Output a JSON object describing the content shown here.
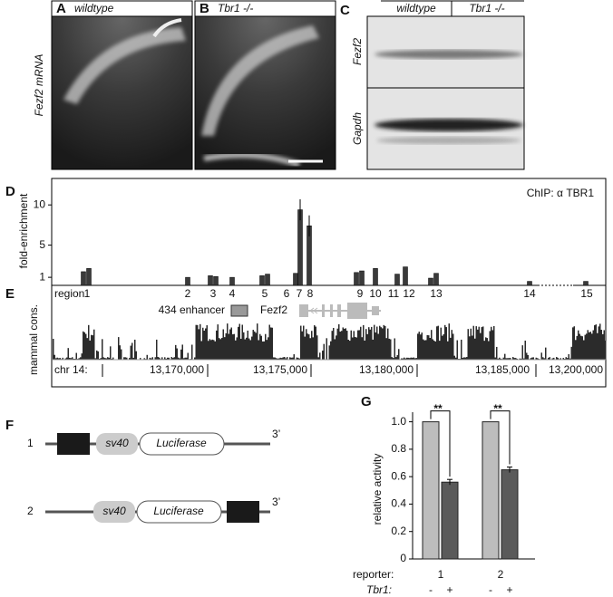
{
  "panel_labels": [
    "A",
    "B",
    "C",
    "D",
    "E",
    "F",
    "G"
  ],
  "panel_a": {
    "title": "wildtype",
    "ylabel": "Fezf2 mRNA"
  },
  "panel_b": {
    "title": "Tbr1 -/-"
  },
  "panel_c": {
    "lanes": [
      "wildtype",
      "Tbr1 -/-"
    ],
    "rows": [
      "Fezf2",
      "Gapdh"
    ]
  },
  "chart_data": [
    {
      "type": "bar",
      "ylabel": "fold-enrichment",
      "annotation": "ChIP: α TBR1",
      "xlabel": "region",
      "categories": [
        "1",
        "2",
        "3",
        "4",
        "5",
        "6",
        "7",
        "8",
        "9",
        "10",
        "11",
        "12",
        "13",
        "14",
        "15"
      ],
      "values": [
        [
          1.7,
          2.1
        ],
        [
          1.0
        ],
        [
          1.2,
          1.1
        ],
        [
          1.0
        ],
        [
          1.2,
          1.4
        ],
        [
          1.5
        ],
        [
          9.4
        ],
        [
          7.4
        ],
        [
          1.6,
          1.8
        ],
        [
          2.1
        ],
        [
          1.4
        ],
        [
          2.3
        ],
        [
          0.9,
          1.5
        ],
        [
          0.5
        ],
        [
          0.5
        ]
      ],
      "errors": [
        null,
        null,
        null,
        null,
        null,
        null,
        [
          1.3
        ],
        [
          1.3
        ],
        null,
        null,
        null,
        null,
        null,
        null,
        null
      ],
      "color": "#3a3a3a",
      "ylim": [
        0,
        12.5
      ],
      "yticks": [
        1,
        5,
        10
      ]
    },
    {
      "type": "bar",
      "ylabel": "relative activity",
      "xlabel": "reporter:",
      "series_label": "Tbr1:",
      "categories": [
        "1",
        "2"
      ],
      "series": [
        {
          "name": "-",
          "color": "#bdbdbd",
          "values": [
            1.0,
            1.0
          ]
        },
        {
          "name": "+",
          "color": "#5a5a5a",
          "values": [
            0.56,
            0.65
          ],
          "errors": [
            0.02,
            0.02
          ]
        }
      ],
      "annotations": [
        "**",
        "**"
      ],
      "ylim": [
        0,
        1.07
      ],
      "yticks": [
        0,
        0.2,
        0.4,
        0.6,
        0.8,
        {
          "value": 1,
          "label": "1.0"
        }
      ]
    }
  ],
  "panel_e": {
    "row_label": "mammal cons.",
    "chr_label": "chr 14:",
    "enhancer": "434 enhancer",
    "gene": "Fezf2",
    "coords": [
      "13,170,000",
      "13,175,000",
      "13,180,000",
      "13,185,000",
      "13,200,000"
    ]
  },
  "panel_f": {
    "constructs": [
      {
        "number": "1",
        "promoter": "sv40",
        "reporter": "Luciferase",
        "end": "3’"
      },
      {
        "number": "2",
        "promoter": "sv40",
        "reporter": "Luciferase",
        "end": "3’"
      }
    ]
  }
}
